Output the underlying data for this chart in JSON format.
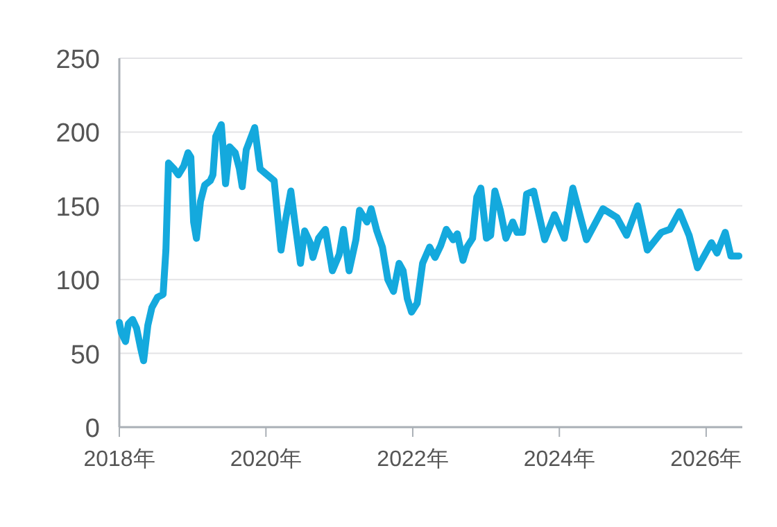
{
  "chart_data": {
    "type": "line",
    "grid": "y",
    "marker": "none",
    "line_style": "solid",
    "xlim": [
      "2018-01-01",
      "2026-06-30"
    ],
    "xticks": [
      {
        "value": "2018-01-01",
        "label": "2018年"
      },
      {
        "value": "2020-01-01",
        "label": "2020年"
      },
      {
        "value": "2022-01-01",
        "label": "2022年"
      },
      {
        "value": "2024-01-01",
        "label": "2024年"
      },
      {
        "value": "2026-01-01",
        "label": "2026年"
      }
    ],
    "ylim": [
      0,
      250
    ],
    "yticks": [
      0,
      50,
      100,
      150,
      200,
      250
    ],
    "series": [
      {
        "color": "#14a9dd",
        "x": [
          "2018-01-01",
          "2018-01-11",
          "2018-02-01",
          "2018-02-15",
          "2018-03-08",
          "2018-03-28",
          "2018-04-18",
          "2018-05-02",
          "2018-05-23",
          "2018-06-12",
          "2018-07-10",
          "2018-08-07",
          "2018-08-21",
          "2018-09-03",
          "2018-10-01",
          "2018-10-22",
          "2018-11-18",
          "2018-12-09",
          "2018-12-23",
          "2019-01-06",
          "2019-01-20",
          "2019-02-09",
          "2019-03-02",
          "2019-03-30",
          "2019-04-12",
          "2019-04-26",
          "2019-05-24",
          "2019-06-14",
          "2019-07-04",
          "2019-08-01",
          "2019-08-22",
          "2019-09-05",
          "2019-09-25",
          "2019-11-06",
          "2019-12-03",
          "2020-01-07",
          "2020-02-11",
          "2020-03-16",
          "2020-04-06",
          "2020-05-04",
          "2020-05-24",
          "2020-06-21",
          "2020-07-12",
          "2020-08-08",
          "2020-08-22",
          "2020-09-19",
          "2020-10-23",
          "2020-11-27",
          "2020-12-31",
          "2021-01-21",
          "2021-02-18",
          "2021-03-24",
          "2021-04-11",
          "2021-05-18",
          "2021-06-08",
          "2021-07-06",
          "2021-08-03",
          "2021-08-30",
          "2021-09-27",
          "2021-10-25",
          "2021-11-14",
          "2021-12-05",
          "2021-12-26",
          "2022-01-23",
          "2022-02-19",
          "2022-03-26",
          "2022-04-22",
          "2022-05-20",
          "2022-06-17",
          "2022-07-21",
          "2022-08-11",
          "2022-09-08",
          "2022-09-28",
          "2022-10-26",
          "2022-11-16",
          "2022-12-06",
          "2023-01-03",
          "2023-01-24",
          "2023-02-14",
          "2023-03-13",
          "2023-04-10",
          "2023-05-14",
          "2023-06-04",
          "2023-07-02",
          "2023-07-22",
          "2023-08-26",
          "2023-10-20",
          "2023-12-08",
          "2024-01-26",
          "2024-03-08",
          "2024-05-15",
          "2024-08-05",
          "2024-10-14",
          "2024-12-01",
          "2025-01-25",
          "2025-03-14",
          "2025-05-23",
          "2025-07-04",
          "2025-08-21",
          "2025-10-08",
          "2025-11-19",
          "2026-01-27",
          "2026-02-24",
          "2026-04-06",
          "2026-05-04",
          "2026-06-13"
        ],
        "values": [
          71,
          64,
          58,
          70,
          73,
          67,
          53,
          45,
          69,
          81,
          88,
          90,
          120,
          179,
          175,
          171,
          177,
          186,
          183,
          139,
          128,
          153,
          164,
          167,
          171,
          197,
          205,
          165,
          190,
          186,
          175,
          163,
          188,
          203,
          175,
          171,
          167,
          120,
          139,
          160,
          139,
          111,
          133,
          125,
          115,
          128,
          134,
          106,
          117,
          134,
          106,
          127,
          147,
          139,
          148,
          133,
          122,
          100,
          92,
          111,
          106,
          87,
          78,
          84,
          111,
          122,
          115,
          123,
          134,
          127,
          131,
          113,
          122,
          128,
          156,
          162,
          128,
          130,
          160,
          147,
          128,
          139,
          132,
          132,
          158,
          160,
          127,
          144,
          128,
          162,
          127,
          148,
          142,
          130,
          150,
          120,
          132,
          134,
          146,
          130,
          108,
          125,
          118,
          132,
          116,
          116
        ]
      }
    ]
  }
}
